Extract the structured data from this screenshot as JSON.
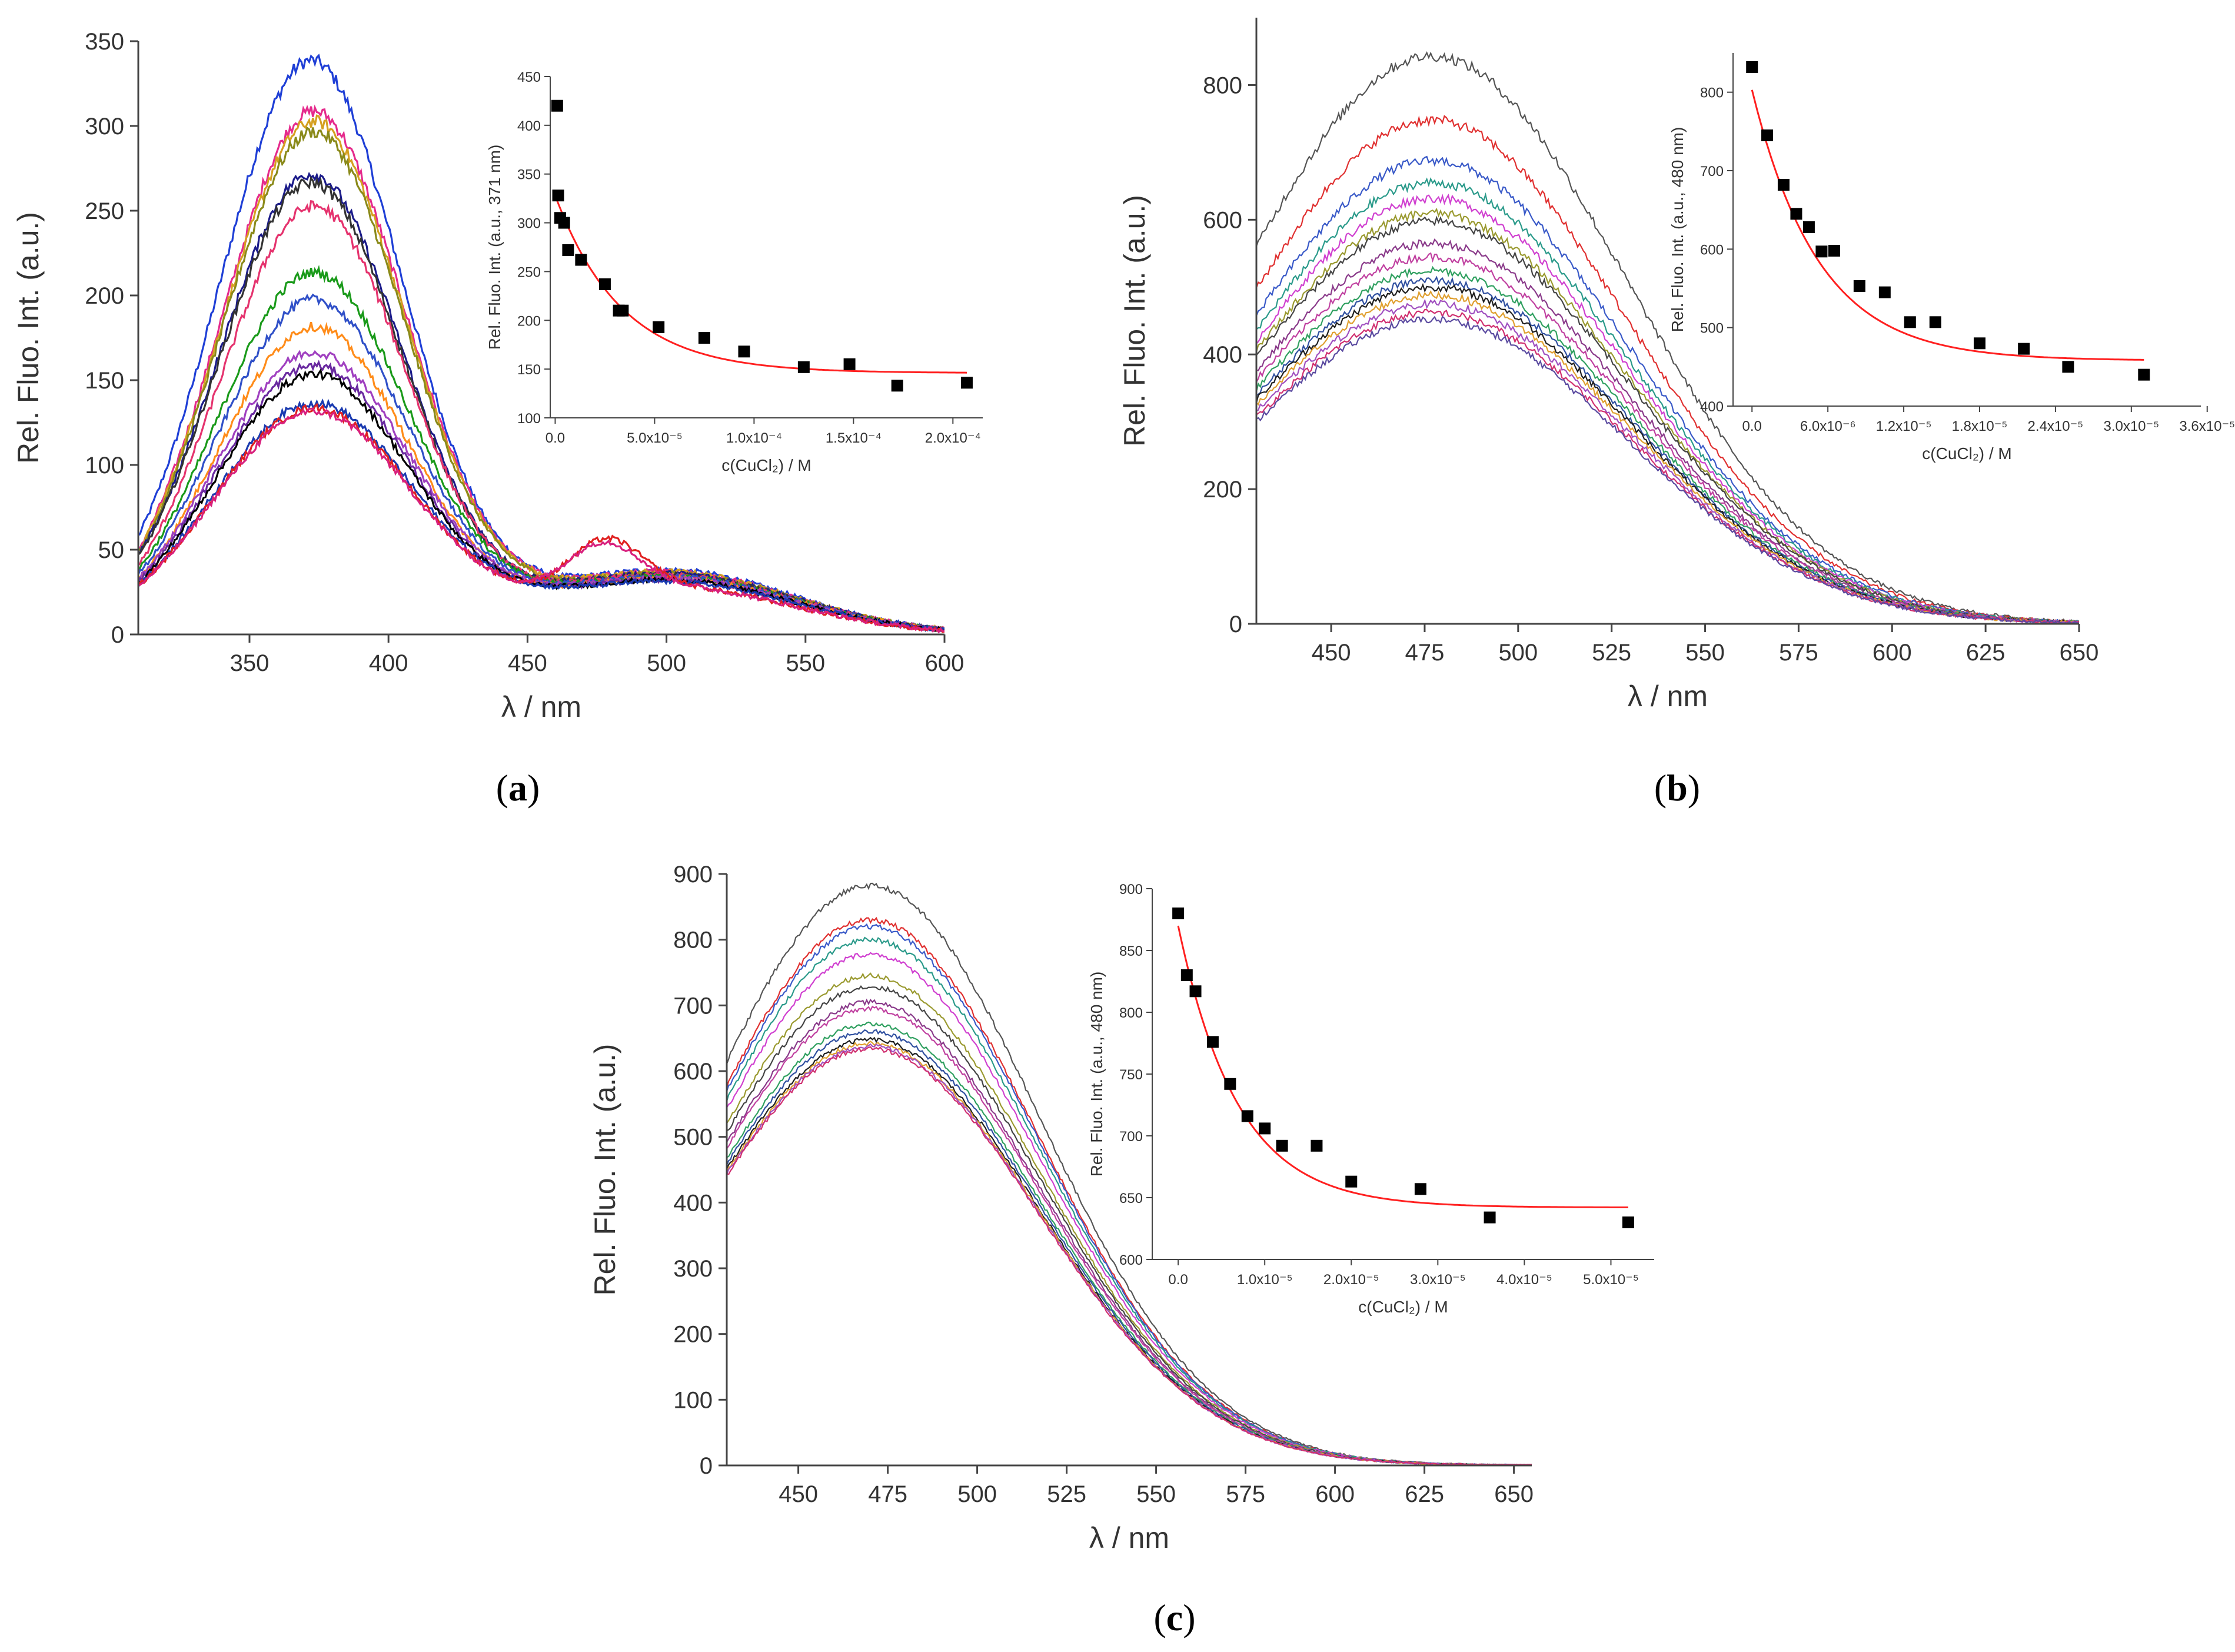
{
  "figure_labels": {
    "a_open": "(",
    "a_letter": "a",
    "a_close": ")",
    "b_open": "(",
    "b_letter": "b",
    "b_close": ")",
    "c_open": "(",
    "c_letter": "c",
    "c_close": ")"
  },
  "colors": {
    "axis": "#444444",
    "fit": "#ff2020",
    "marker": "#000000"
  },
  "chart_data": [
    {
      "id": "a-main",
      "type": "line",
      "xlabel": "λ / nm",
      "ylabel": "Rel. Fluo. Int. (a.u.)",
      "xlim": [
        310,
        600
      ],
      "ylim": [
        0,
        350
      ],
      "xticks": [
        350,
        400,
        450,
        500,
        550,
        600
      ],
      "yticks": [
        0,
        50,
        100,
        150,
        200,
        250,
        300,
        350
      ],
      "noise": 3,
      "series": [
        {
          "color": "#1f3fd6",
          "peak": 338,
          "center": 372,
          "width": 33,
          "base": 55,
          "tail": 38
        },
        {
          "color": "#e52a8c",
          "peak": 308,
          "center": 373,
          "width": 33,
          "base": 55,
          "tail": 37
        },
        {
          "color": "#d5a020",
          "peak": 302,
          "center": 373,
          "width": 33,
          "base": 55,
          "tail": 37
        },
        {
          "color": "#8a8a1a",
          "peak": 296,
          "center": 373,
          "width": 33,
          "base": 55,
          "tail": 36
        },
        {
          "color": "#1b1b8a",
          "peak": 271,
          "center": 372,
          "width": 33,
          "base": 55,
          "tail": 36
        },
        {
          "color": "#333333",
          "peak": 266,
          "center": 372,
          "width": 33,
          "base": 55,
          "tail": 35
        },
        {
          "color": "#e5336e",
          "peak": 252,
          "center": 373,
          "width": 33,
          "base": 55,
          "tail": 35
        },
        {
          "color": "#1a9a1a",
          "peak": 213,
          "center": 373,
          "width": 34,
          "base": 56,
          "tail": 34
        },
        {
          "color": "#3050c8",
          "peak": 197,
          "center": 373,
          "width": 34,
          "base": 56,
          "tail": 34
        },
        {
          "color": "#ff8c1a",
          "peak": 181,
          "center": 373,
          "width": 34,
          "base": 56,
          "tail": 33
        },
        {
          "color": "#a040c0",
          "peak": 166,
          "center": 373,
          "width": 35,
          "base": 56,
          "tail": 33
        },
        {
          "color": "#6a2aa0",
          "peak": 158,
          "center": 373,
          "width": 35,
          "base": 56,
          "tail": 32
        },
        {
          "color": "#000000",
          "peak": 153,
          "center": 373,
          "width": 35,
          "base": 56,
          "tail": 32
        },
        {
          "color": "#1a3ab0",
          "peak": 136,
          "center": 373,
          "width": 36,
          "base": 57,
          "tail": 31
        },
        {
          "color": "#e02020",
          "peak": 133,
          "center": 373,
          "width": 36,
          "base": 57,
          "tail": 28,
          "bump": {
            "center": 478,
            "height": 30,
            "width": 13
          }
        },
        {
          "color": "#d8207e",
          "peak": 131,
          "center": 373,
          "width": 36,
          "base": 57,
          "tail": 28,
          "bump": {
            "center": 477,
            "height": 28,
            "width": 13
          }
        }
      ],
      "inset": {
        "xlabel": "c(CuCl₂) / M",
        "ylabel": "Rel. Fluo. Int. (a.u., 371 nm)",
        "xlim": [
          -2.5e-06,
          0.000215
        ],
        "ylim": [
          100,
          450
        ],
        "xticks": [
          0.0,
          5e-05,
          0.0001,
          0.00015,
          0.0002
        ],
        "xtick_labels": [
          "0.0",
          "5.0x10⁻⁵",
          "1.0x10⁻⁴",
          "1.5x10⁻⁴",
          "2.0x10⁻⁴"
        ],
        "yticks": [
          100,
          150,
          200,
          250,
          300,
          350,
          400,
          450
        ],
        "points": {
          "x": [
            1e-06,
            1.5e-06,
            2.5e-06,
            4.5e-06,
            6.5e-06,
            1.3e-05,
            2.5e-05,
            3.2e-05,
            3.4e-05,
            5.2e-05,
            7.5e-05,
            9.5e-05,
            0.000125,
            0.000148,
            0.000172,
            0.000207
          ],
          "y": [
            420,
            328,
            305,
            300,
            272,
            262,
            237,
            210,
            210,
            193,
            182,
            168,
            152,
            155,
            133,
            136
          ]
        },
        "fit": {
          "a": 182,
          "k": 30000,
          "c": 146,
          "from": 1e-06,
          "to": 0.000207
        }
      }
    },
    {
      "id": "b-main",
      "type": "line",
      "xlabel": "λ / nm",
      "ylabel": "Rel. Fluo. Int. (a.u.)",
      "xlim": [
        430,
        650
      ],
      "ylim": [
        0,
        900
      ],
      "xticks": [
        450,
        475,
        500,
        525,
        550,
        575,
        600,
        625,
        650
      ],
      "yticks": [
        0,
        200,
        400,
        600,
        800
      ],
      "noise": 6,
      "series": [
        {
          "color": "#555555",
          "peak": 843,
          "center": 477,
          "width": 52
        },
        {
          "color": "#e03030",
          "peak": 748,
          "center": 477,
          "width": 52
        },
        {
          "color": "#3a5ac8",
          "peak": 688,
          "center": 477,
          "width": 52
        },
        {
          "color": "#2a9a8a",
          "peak": 655,
          "center": 477,
          "width": 52
        },
        {
          "color": "#d040d0",
          "peak": 632,
          "center": 477,
          "width": 52
        },
        {
          "color": "#9a9a30",
          "peak": 610,
          "center": 477,
          "width": 52
        },
        {
          "color": "#444444",
          "peak": 598,
          "center": 477,
          "width": 52
        },
        {
          "color": "#8a3a8a",
          "peak": 565,
          "center": 477,
          "width": 52
        },
        {
          "color": "#c040a0",
          "peak": 545,
          "center": 477,
          "width": 52
        },
        {
          "color": "#30a060",
          "peak": 525,
          "center": 477,
          "width": 52
        },
        {
          "color": "#3050a0",
          "peak": 510,
          "center": 477,
          "width": 52
        },
        {
          "color": "#202020",
          "peak": 500,
          "center": 477,
          "width": 52
        },
        {
          "color": "#e0a030",
          "peak": 488,
          "center": 477,
          "width": 52
        },
        {
          "color": "#a050c0",
          "peak": 475,
          "center": 477,
          "width": 52
        },
        {
          "color": "#d03070",
          "peak": 462,
          "center": 477,
          "width": 52
        },
        {
          "color": "#5a4aa0",
          "peak": 452,
          "center": 477,
          "width": 52
        }
      ],
      "inset": {
        "xlabel": "c(CuCl₂) / M",
        "ylabel": "Rel. Fluo. Int. (a.u., 480 nm)",
        "xlim": [
          -1.5e-06,
          3.55e-05
        ],
        "ylim": [
          400,
          850
        ],
        "xticks": [
          0.0,
          6e-06,
          1.2e-05,
          1.8e-05,
          2.4e-05,
          3e-05,
          3.6e-05
        ],
        "xtick_labels": [
          "0.0",
          "6.0x10⁻⁶",
          "1.2x10⁻⁵",
          "1.8x10⁻⁵",
          "2.4x10⁻⁵",
          "3.0x10⁻⁵",
          "3.6x10⁻⁵"
        ],
        "yticks": [
          400,
          500,
          600,
          700,
          800
        ],
        "points": {
          "x": [
            0.0,
            1.2e-06,
            2.5e-06,
            3.5e-06,
            4.5e-06,
            5.5e-06,
            6.5e-06,
            8.5e-06,
            1.05e-05,
            1.25e-05,
            1.45e-05,
            1.8e-05,
            2.15e-05,
            2.5e-05,
            3.1e-05
          ],
          "y": [
            832,
            745,
            682,
            645,
            628,
            597,
            598,
            553,
            545,
            507,
            507,
            480,
            473,
            450,
            440
          ]
        },
        "fit": {
          "a": 345,
          "k": 190000,
          "c": 458,
          "from": 0.0,
          "to": 3.1e-05
        }
      }
    },
    {
      "id": "c-main",
      "type": "line",
      "xlabel": "λ / nm",
      "ylabel": "Rel. Fluo. Int. (a.u.)",
      "xlim": [
        430,
        655
      ],
      "ylim": [
        0,
        900
      ],
      "xticks": [
        450,
        475,
        500,
        525,
        550,
        575,
        600,
        625,
        650
      ],
      "yticks": [
        0,
        100,
        200,
        300,
        400,
        500,
        600,
        700,
        800,
        900
      ],
      "noise": 3,
      "series": [
        {
          "color": "#555555",
          "peak": 882,
          "center": 470,
          "width": 47
        },
        {
          "color": "#e03030",
          "peak": 830,
          "center": 470,
          "width": 47
        },
        {
          "color": "#3a5ac8",
          "peak": 820,
          "center": 470,
          "width": 47
        },
        {
          "color": "#2a9a8a",
          "peak": 800,
          "center": 470,
          "width": 47
        },
        {
          "color": "#d040d0",
          "peak": 778,
          "center": 470,
          "width": 47
        },
        {
          "color": "#9a9a30",
          "peak": 745,
          "center": 470,
          "width": 47
        },
        {
          "color": "#444444",
          "peak": 728,
          "center": 470,
          "width": 47
        },
        {
          "color": "#8a3a8a",
          "peak": 705,
          "center": 470,
          "width": 47
        },
        {
          "color": "#c040a0",
          "peak": 695,
          "center": 470,
          "width": 47
        },
        {
          "color": "#30a060",
          "peak": 672,
          "center": 470,
          "width": 47
        },
        {
          "color": "#3050a0",
          "peak": 660,
          "center": 470,
          "width": 47
        },
        {
          "color": "#202020",
          "peak": 648,
          "center": 470,
          "width": 47
        },
        {
          "color": "#e0a030",
          "peak": 642,
          "center": 470,
          "width": 47
        },
        {
          "color": "#a050c0",
          "peak": 638,
          "center": 470,
          "width": 47
        },
        {
          "color": "#d03070",
          "peak": 634,
          "center": 470,
          "width": 47
        }
      ],
      "inset": {
        "xlabel": "c(CuCl₂) / M",
        "ylabel": "Rel. Fluo. Int. (a.u., 480 nm)",
        "xlim": [
          -3e-06,
          5.5e-05
        ],
        "ylim": [
          600,
          900
        ],
        "xticks": [
          0.0,
          1e-05,
          2e-05,
          3e-05,
          4e-05,
          5e-05
        ],
        "xtick_labels": [
          "0.0",
          "1.0x10⁻⁵",
          "2.0x10⁻⁵",
          "3.0x10⁻⁵",
          "4.0x10⁻⁵",
          "5.0x10⁻⁵"
        ],
        "yticks": [
          600,
          650,
          700,
          750,
          800,
          850,
          900
        ],
        "points": {
          "x": [
            0.0,
            1e-06,
            2e-06,
            4e-06,
            6e-06,
            8e-06,
            1e-05,
            1.2e-05,
            1.6e-05,
            2e-05,
            2.8e-05,
            3.6e-05,
            5.2e-05
          ],
          "y": [
            880,
            830,
            817,
            776,
            742,
            716,
            706,
            692,
            692,
            663,
            657,
            634,
            630
          ]
        },
        "fit": {
          "a": 228,
          "k": 145000,
          "c": 642,
          "from": 0.0,
          "to": 5.2e-05
        }
      }
    }
  ]
}
